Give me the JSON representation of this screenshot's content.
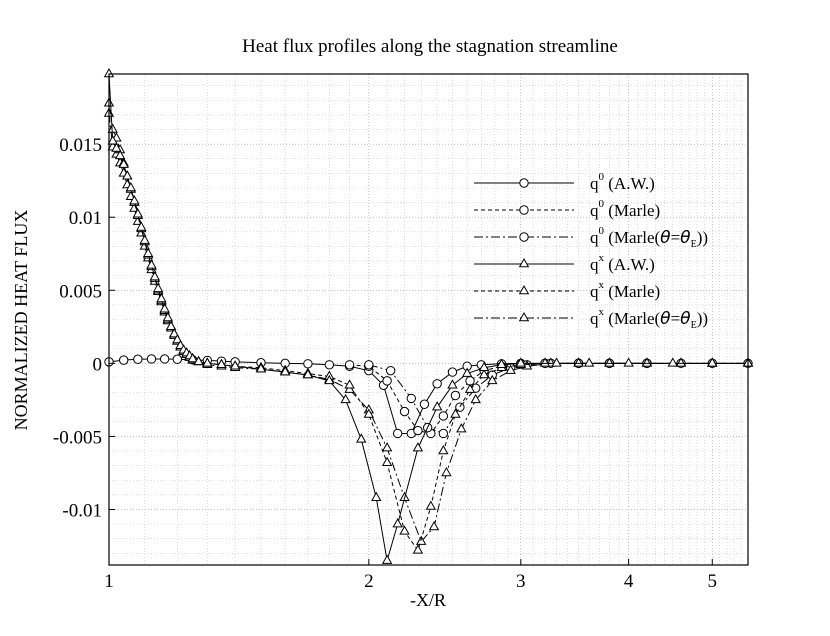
{
  "chart_data": {
    "type": "line",
    "title": "Heat flux profiles along the stagnation streamline",
    "xlabel": "-X/R",
    "ylabel": "NORMALIZED HEAT FLUX",
    "xscale": "log",
    "xlim": [
      1,
      5.5
    ],
    "ylim": [
      -0.0138,
      0.0198
    ],
    "grid": true,
    "legend_position": "right",
    "x_ticks": [
      {
        "value": 1,
        "label": "1"
      },
      {
        "value": 2,
        "label": "2"
      },
      {
        "value": 3,
        "label": "3"
      },
      {
        "value": 4,
        "label": "4"
      },
      {
        "value": 5,
        "label": "5"
      }
    ],
    "y_ticks": [
      {
        "value": 0.015,
        "label": "0.015"
      },
      {
        "value": 0.01,
        "label": "0.01"
      },
      {
        "value": 0.005,
        "label": "0.005"
      },
      {
        "value": 0,
        "label": "0"
      },
      {
        "value": -0.005,
        "label": "-0.005"
      },
      {
        "value": -0.01,
        "label": "-0.01"
      }
    ],
    "legend": [
      {
        "base": "q",
        "sup": "0",
        "text": " (A.W.)",
        "marker": "circle",
        "dash": "solid"
      },
      {
        "base": "q",
        "sup": "0",
        "text": " (Marle)",
        "marker": "circle",
        "dash": "dashed"
      },
      {
        "base": "q",
        "sup": "0",
        "text": " (Marle(",
        "theta_a": "θ",
        "eq": "=",
        "theta_b": "θ",
        "sub": "E",
        "close": "))",
        "marker": "circle",
        "dash": "dashdot"
      },
      {
        "base": "q",
        "sup": "x",
        "text": " (A.W.)",
        "marker": "triangle",
        "dash": "solid"
      },
      {
        "base": "q",
        "sup": "x",
        "text": " (Marle)",
        "marker": "triangle",
        "dash": "dashed"
      },
      {
        "base": "q",
        "sup": "x",
        "text": " (Marle(",
        "theta_a": "θ",
        "eq": "=",
        "theta_b": "θ",
        "sub": "E",
        "close": "))",
        "marker": "triangle",
        "dash": "dashdot"
      }
    ],
    "series": [
      {
        "name": "q0 (A.W.)",
        "marker": "circle",
        "dash": "solid",
        "x": [
          1.0,
          1.04,
          1.08,
          1.12,
          1.16,
          1.2,
          1.25,
          1.3,
          1.35,
          1.4,
          1.5,
          1.6,
          1.7,
          1.8,
          1.9,
          2.0,
          2.08,
          2.16,
          2.24,
          2.32,
          2.4,
          2.5,
          2.6,
          2.7,
          2.85,
          3.0,
          3.2,
          3.5,
          3.8,
          4.2,
          4.6,
          5.0,
          5.5
        ],
        "y": [
          0.0001,
          0.00022,
          0.00028,
          0.0003,
          0.0003,
          0.00028,
          0.00024,
          0.0002,
          0.00015,
          0.0001,
          4e-05,
          0.0,
          -3e-05,
          -0.0001,
          -0.0002,
          -0.0005,
          -0.0015,
          -0.0048,
          -0.0048,
          -0.0028,
          -0.0014,
          -0.0006,
          -0.0002,
          -0.0001,
          -3e-05,
          0.0,
          0.0,
          0.0,
          0.0,
          0.0,
          0.0,
          0.0,
          0.0
        ]
      },
      {
        "name": "q0 (Marle)",
        "marker": "circle",
        "dash": "dashed",
        "x": [
          1.9,
          2.0,
          2.1,
          2.2,
          2.28,
          2.36,
          2.44,
          2.52,
          2.62,
          2.72,
          2.85,
          3.0,
          3.2,
          3.5,
          3.8,
          4.2
        ],
        "y": [
          -0.0001,
          -0.0002,
          -0.0012,
          -0.0033,
          -0.0046,
          -0.0048,
          -0.0036,
          -0.0022,
          -0.0012,
          -0.0005,
          -0.0002,
          -5e-05,
          0.0,
          0.0,
          0.0,
          0.0
        ]
      },
      {
        "name": "q0 (Marle(θ=θE))",
        "marker": "circle",
        "dash": "dashdot",
        "x": [
          2.0,
          2.12,
          2.24,
          2.34,
          2.44,
          2.55,
          2.66,
          2.78,
          2.92,
          3.05,
          3.25,
          3.5,
          3.8,
          4.2
        ],
        "y": [
          -0.0001,
          -0.0005,
          -0.0024,
          -0.0044,
          -0.0048,
          -0.003,
          -0.0017,
          -0.0008,
          -0.0003,
          -0.0001,
          0.0,
          0.0,
          0.0,
          0.0
        ]
      },
      {
        "name": "qx (A.W.)",
        "marker": "triangle",
        "dash": "solid",
        "x": [
          1.0,
          1.01,
          1.02,
          1.03,
          1.04,
          1.05,
          1.06,
          1.07,
          1.08,
          1.09,
          1.1,
          1.11,
          1.12,
          1.13,
          1.14,
          1.15,
          1.16,
          1.17,
          1.18,
          1.19,
          1.2,
          1.21,
          1.22,
          1.23,
          1.24,
          1.25,
          1.27,
          1.3,
          1.35,
          1.4,
          1.5,
          1.6,
          1.7,
          1.8,
          1.88,
          1.96,
          2.04,
          2.1,
          2.16,
          2.28,
          2.4,
          2.5,
          2.6,
          2.72,
          2.85,
          3.0,
          3.3,
          3.6,
          4.0,
          4.5,
          5.0,
          5.5
        ],
        "y": [
          0.0198,
          0.0152,
          0.0147,
          0.0142,
          0.0136,
          0.0128,
          0.012,
          0.0111,
          0.0102,
          0.0093,
          0.0084,
          0.0075,
          0.0067,
          0.0059,
          0.0051,
          0.0044,
          0.0037,
          0.0031,
          0.0025,
          0.002,
          0.0016,
          0.0012,
          0.0009,
          0.0007,
          0.0005,
          0.0003,
          0.0001,
          0.0,
          -0.0001,
          -0.0002,
          -0.0004,
          -0.0006,
          -0.0008,
          -0.0012,
          -0.0025,
          -0.0052,
          -0.0092,
          -0.0135,
          -0.011,
          -0.0058,
          -0.003,
          -0.0015,
          -0.0007,
          -0.0003,
          -0.0001,
          0.0,
          0.0,
          0.0,
          0.0,
          0.0,
          0.0,
          0.0
        ]
      },
      {
        "name": "qx (Marle)",
        "marker": "triangle",
        "dash": "dashed",
        "x": [
          1.0,
          1.01,
          1.02,
          1.03,
          1.04,
          1.05,
          1.06,
          1.07,
          1.08,
          1.09,
          1.1,
          1.11,
          1.12,
          1.13,
          1.14,
          1.15,
          1.16,
          1.17,
          1.18,
          1.19,
          1.2,
          1.21,
          1.22,
          1.23,
          1.24,
          1.25,
          1.27,
          1.3,
          1.35,
          1.4,
          1.5,
          1.6,
          1.7,
          1.8,
          1.9,
          2.0,
          2.1,
          2.2,
          2.28,
          2.36,
          2.44,
          2.52,
          2.62,
          2.72,
          2.85,
          3.0,
          3.2,
          3.5,
          3.8,
          4.2,
          4.6,
          5.0,
          5.5
        ],
        "y": [
          0.0178,
          0.016,
          0.0154,
          0.0146,
          0.0137,
          0.0128,
          0.0119,
          0.011,
          0.0101,
          0.0092,
          0.0083,
          0.0074,
          0.0066,
          0.0058,
          0.005,
          0.0043,
          0.0036,
          0.003,
          0.0025,
          0.002,
          0.0015,
          0.0011,
          0.0008,
          0.0006,
          0.0004,
          0.0003,
          0.0001,
          0.0,
          -0.0001,
          -0.0002,
          -0.0003,
          -0.0005,
          -0.0007,
          -0.0009,
          -0.0015,
          -0.0035,
          -0.0068,
          -0.0115,
          -0.0128,
          -0.0098,
          -0.006,
          -0.0035,
          -0.0018,
          -0.0008,
          -0.0003,
          -0.0001,
          0.0,
          0.0,
          0.0,
          0.0,
          0.0,
          0.0,
          0.0
        ]
      },
      {
        "name": "qx (Marle(θ=θE))",
        "marker": "triangle",
        "dash": "dashdot",
        "x": [
          1.0,
          1.01,
          1.02,
          1.03,
          1.04,
          1.05,
          1.06,
          1.07,
          1.08,
          1.09,
          1.1,
          1.11,
          1.12,
          1.13,
          1.14,
          1.15,
          1.16,
          1.17,
          1.18,
          1.19,
          1.2,
          1.21,
          1.22,
          1.23,
          1.24,
          1.25,
          1.27,
          1.3,
          1.35,
          1.4,
          1.5,
          1.6,
          1.7,
          1.8,
          1.9,
          2.0,
          2.1,
          2.2,
          2.3,
          2.38,
          2.46,
          2.56,
          2.66,
          2.78,
          2.92,
          3.05,
          3.25,
          3.5,
          3.8,
          4.2,
          4.6,
          5.0,
          5.5
        ],
        "y": [
          0.0171,
          0.0148,
          0.0143,
          0.0137,
          0.013,
          0.0122,
          0.0114,
          0.0106,
          0.0097,
          0.0089,
          0.008,
          0.0072,
          0.0064,
          0.0056,
          0.0049,
          0.0042,
          0.0035,
          0.0029,
          0.0024,
          0.0019,
          0.0015,
          0.0011,
          0.0008,
          0.0006,
          0.0004,
          0.0002,
          0.0001,
          -0.0001,
          -0.0002,
          -0.0003,
          -0.0004,
          -0.0006,
          -0.0008,
          -0.0011,
          -0.0018,
          -0.0032,
          -0.0058,
          -0.0092,
          -0.0122,
          -0.0112,
          -0.0075,
          -0.0045,
          -0.0025,
          -0.0012,
          -0.0005,
          -0.0002,
          0.0,
          0.0,
          0.0,
          0.0,
          0.0,
          0.0,
          0.0
        ]
      }
    ]
  }
}
